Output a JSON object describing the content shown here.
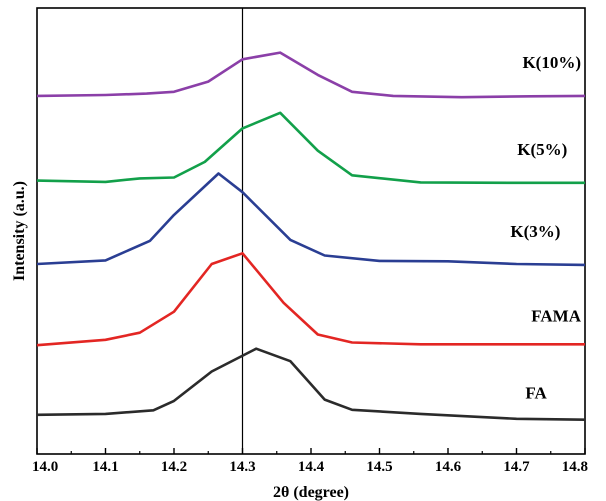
{
  "chart_data": {
    "type": "line",
    "xlabel": "2θ (degree)",
    "ylabel": "Intensity (a.u.)",
    "title": "",
    "xlim": [
      14.0,
      14.8
    ],
    "xticks": [
      "14.0",
      "14.1",
      "14.2",
      "14.3",
      "14.4",
      "14.5",
      "14.6",
      "14.7",
      "14.8"
    ],
    "ylim": [
      0,
      100
    ],
    "grid": false,
    "reference_line_x": 14.3,
    "series": [
      {
        "name": "K(10%)",
        "color": "#8B3FA8",
        "x": [
          14.0,
          14.1,
          14.16,
          14.2,
          14.25,
          14.3,
          14.355,
          14.41,
          14.46,
          14.52,
          14.62,
          14.72,
          14.8
        ],
        "y": [
          80.3,
          80.5,
          80.8,
          81.2,
          83.5,
          88.5,
          90.0,
          85.0,
          81.2,
          80.3,
          80.0,
          80.2,
          80.3
        ]
      },
      {
        "name": "K(5%)",
        "color": "#12A04A",
        "x": [
          14.0,
          14.1,
          14.15,
          14.2,
          14.245,
          14.3,
          14.355,
          14.41,
          14.46,
          14.56,
          14.7,
          14.8
        ],
        "y": [
          61.3,
          61.0,
          61.8,
          62.0,
          65.5,
          73.0,
          76.5,
          68.0,
          62.5,
          60.9,
          60.8,
          60.8
        ]
      },
      {
        "name": "K(3%)",
        "color": "#2A3E93",
        "x": [
          14.0,
          14.1,
          14.165,
          14.2,
          14.265,
          14.3,
          14.37,
          14.42,
          14.5,
          14.6,
          14.7,
          14.8
        ],
        "y": [
          42.6,
          43.4,
          47.8,
          53.6,
          62.9,
          58.7,
          48.0,
          44.5,
          43.3,
          43.2,
          42.6,
          42.4
        ]
      },
      {
        "name": "FAMA",
        "color": "#E32623",
        "x": [
          14.0,
          14.1,
          14.15,
          14.2,
          14.255,
          14.3,
          14.36,
          14.41,
          14.46,
          14.56,
          14.68,
          14.8
        ],
        "y": [
          24.4,
          25.6,
          27.2,
          31.9,
          42.6,
          45.0,
          33.9,
          26.8,
          25.0,
          24.6,
          24.6,
          24.6
        ]
      },
      {
        "name": "FA",
        "color": "#2B2B2B",
        "x": [
          14.0,
          14.1,
          14.17,
          14.2,
          14.255,
          14.32,
          14.37,
          14.42,
          14.46,
          14.56,
          14.7,
          14.8
        ],
        "y": [
          8.8,
          9.0,
          9.8,
          11.9,
          18.5,
          23.6,
          20.8,
          12.2,
          9.9,
          9.0,
          7.9,
          7.7
        ]
      }
    ]
  }
}
